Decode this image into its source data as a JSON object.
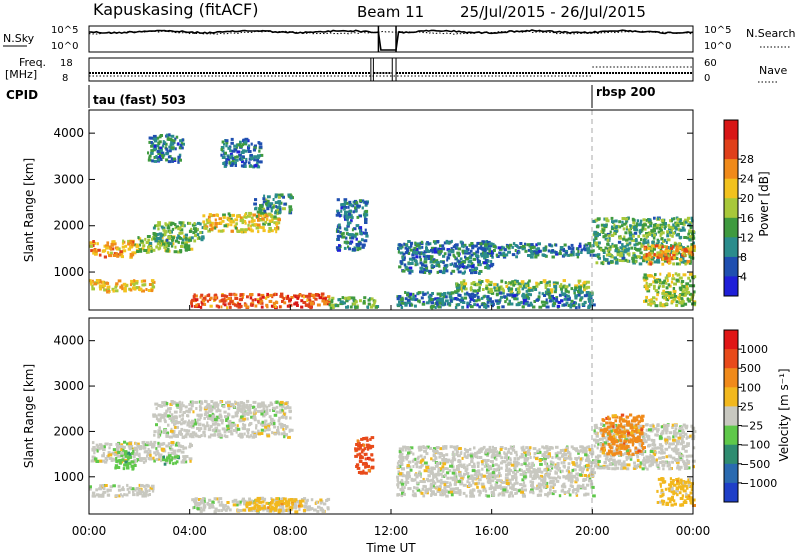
{
  "header": {
    "station": "Kapuskasing (fitACF)",
    "beam": "Beam 11",
    "date_range": "25/Jul/2015 - 26/Jul/2015"
  },
  "nsky_panel": {
    "left_label": "N.Sky",
    "right_label": "N.Search",
    "left_ticks": [
      "10^5",
      "10^0"
    ],
    "right_ticks": [
      "10^5",
      "10^0"
    ]
  },
  "freq_panel": {
    "left_label_1": "Freq.",
    "left_label_2": "[MHz]",
    "right_label": "Nave",
    "left_ticks": [
      "18",
      "8"
    ],
    "right_ticks": [
      "60",
      "0"
    ]
  },
  "cpid": {
    "label": "CPID",
    "modes": [
      {
        "name": "tau (fast) 503",
        "start_hour": 0
      },
      {
        "name": "rbsp 200",
        "start_hour": 20
      }
    ]
  },
  "time_axis": {
    "label": "Time UT",
    "ticks": [
      "00:00",
      "04:00",
      "08:00",
      "12:00",
      "16:00",
      "20:00",
      "00:00"
    ]
  },
  "range_axis": {
    "label": "Slant Range [km]",
    "ticks": [
      "1000",
      "2000",
      "3000",
      "4000"
    ]
  },
  "power_colorbar": {
    "label": "Power [dB]",
    "ticks": [
      "4",
      "8",
      "12",
      "16",
      "20",
      "24",
      "28"
    ],
    "colors": [
      "#1f1fd8",
      "#1f4fb0",
      "#2b8c8c",
      "#3f9a3f",
      "#a8c83a",
      "#f2c21e",
      "#f08a1a",
      "#e0401a",
      "#d81616"
    ]
  },
  "velocity_colorbar": {
    "label": "Velocity [m s⁻¹]",
    "ticks": [
      "1000",
      "500",
      "100",
      "25",
      "−25",
      "−100",
      "−500",
      "−1000"
    ],
    "colors": [
      "#1f3fc8",
      "#2a6ab0",
      "#2f8c70",
      "#5fc84a",
      "#c8c8c0",
      "#f2b81e",
      "#f08a1a",
      "#e84a1a",
      "#e01616"
    ]
  },
  "chart_data": [
    {
      "type": "line",
      "title": "",
      "series": [
        {
          "name": "N.Sky"
        },
        {
          "name": "N.Search"
        }
      ],
      "x_range_hours": [
        0,
        24
      ],
      "gap_hours": [
        11.5,
        12.2
      ],
      "level_note": "near upper limit except data gap"
    },
    {
      "type": "line",
      "series": [
        {
          "name": "Freq."
        },
        {
          "name": "Nave"
        }
      ],
      "freq_mhz": 8,
      "x_range_hours": [
        0,
        24
      ],
      "gaps_hours": [
        [
          11.2,
          11.3
        ],
        [
          12.05,
          12.2
        ]
      ],
      "nave_step_hour": 20
    },
    {
      "type": "heatmap",
      "quantity": "Power",
      "x_range_hours": [
        0,
        24
      ],
      "y_range_km": [
        180,
        4500
      ],
      "clim_db": [
        0,
        32
      ],
      "regions": [
        {
          "t0": 0.0,
          "t1": 1.8,
          "r0": 1350,
          "r1": 1700,
          "v": 22
        },
        {
          "t0": 1.8,
          "t1": 4.0,
          "r0": 1450,
          "r1": 1800,
          "v": 15
        },
        {
          "t0": 0.0,
          "t1": 2.5,
          "r0": 600,
          "r1": 850,
          "v": 20
        },
        {
          "t0": 2.5,
          "t1": 4.5,
          "r0": 1700,
          "r1": 2100,
          "v": 12
        },
        {
          "t0": 4.5,
          "t1": 7.5,
          "r0": 1900,
          "r1": 2300,
          "v": 18
        },
        {
          "t0": 6.5,
          "t1": 8.0,
          "r0": 2300,
          "r1": 2700,
          "v": 10
        },
        {
          "t0": 2.3,
          "t1": 3.7,
          "r0": 3400,
          "r1": 4000,
          "v": 8
        },
        {
          "t0": 5.2,
          "t1": 6.8,
          "r0": 3300,
          "r1": 3900,
          "v": 8
        },
        {
          "t0": 4.0,
          "t1": 9.5,
          "r0": 260,
          "r1": 560,
          "v": 26
        },
        {
          "t0": 9.5,
          "t1": 11.4,
          "r0": 260,
          "r1": 500,
          "v": 12
        },
        {
          "t0": 9.8,
          "t1": 11.0,
          "r0": 1500,
          "r1": 2600,
          "v": 8
        },
        {
          "t0": 12.2,
          "t1": 16.0,
          "r0": 1000,
          "r1": 1700,
          "v": 8
        },
        {
          "t0": 12.2,
          "t1": 20.0,
          "r0": 260,
          "r1": 600,
          "v": 8
        },
        {
          "t0": 14.5,
          "t1": 19.8,
          "r0": 600,
          "r1": 850,
          "v": 14
        },
        {
          "t0": 15.5,
          "t1": 20.0,
          "r0": 1350,
          "r1": 1650,
          "v": 8
        },
        {
          "t0": 20.0,
          "t1": 24.0,
          "r0": 1200,
          "r1": 2200,
          "v": 12
        },
        {
          "t0": 22.0,
          "t1": 24.0,
          "r0": 1200,
          "r1": 1600,
          "v": 22
        },
        {
          "t0": 22.0,
          "t1": 24.0,
          "r0": 300,
          "r1": 1000,
          "v": 16
        }
      ]
    },
    {
      "type": "heatmap",
      "quantity": "Velocity",
      "x_range_hours": [
        0,
        24
      ],
      "y_range_km": [
        180,
        4500
      ],
      "regions": [
        {
          "t0": 0.0,
          "t1": 4.0,
          "r0": 1350,
          "r1": 1800,
          "c": 4
        },
        {
          "t0": 0.0,
          "t1": 2.5,
          "r0": 600,
          "r1": 850,
          "c": 4
        },
        {
          "t0": 2.5,
          "t1": 8.0,
          "r0": 1900,
          "r1": 2700,
          "c": 4
        },
        {
          "t0": 1.0,
          "t1": 1.8,
          "r0": 1200,
          "r1": 1600,
          "c": 3
        },
        {
          "t0": 2.8,
          "t1": 3.5,
          "r0": 1300,
          "r1": 1500,
          "c": 3
        },
        {
          "t0": 4.0,
          "t1": 9.5,
          "r0": 260,
          "r1": 560,
          "c": 4
        },
        {
          "t0": 6.2,
          "t1": 8.5,
          "r0": 260,
          "r1": 560,
          "c": 5
        },
        {
          "t0": 10.5,
          "t1": 11.2,
          "r0": 1100,
          "r1": 1900,
          "c": 7
        },
        {
          "t0": 12.2,
          "t1": 20.0,
          "r0": 600,
          "r1": 1700,
          "c": 4
        },
        {
          "t0": 20.0,
          "t1": 24.0,
          "r0": 1200,
          "r1": 2200,
          "c": 4
        },
        {
          "t0": 20.3,
          "t1": 22.0,
          "r0": 1500,
          "r1": 2400,
          "c": 6
        },
        {
          "t0": 22.5,
          "t1": 24.0,
          "r0": 400,
          "r1": 1000,
          "c": 5
        }
      ]
    }
  ]
}
